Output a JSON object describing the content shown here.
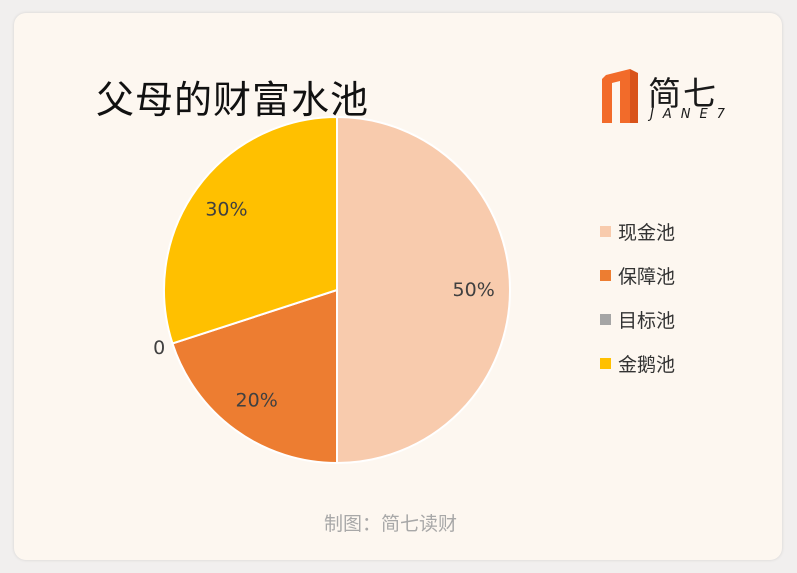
{
  "title": "父母的财富水池",
  "logo": {
    "cn_text": "简七",
    "en_text": "JANE7",
    "color": "#f26b2a"
  },
  "credit": "制图：简七读财",
  "chart_data": {
    "type": "pie",
    "title": "父母的财富水池",
    "slices": [
      {
        "label": "现金池",
        "value": 50,
        "display": "50%",
        "color": "#f8cbad"
      },
      {
        "label": "保障池",
        "value": 20,
        "display": "20%",
        "color": "#ed7d31"
      },
      {
        "label": "目标池",
        "value": 0,
        "display": "0",
        "color": "#a5a5a5"
      },
      {
        "label": "金鹅池",
        "value": 30,
        "display": "30%",
        "color": "#ffc000"
      }
    ],
    "start_angle_deg": 0,
    "direction": "clockwise",
    "legend_position": "right"
  }
}
